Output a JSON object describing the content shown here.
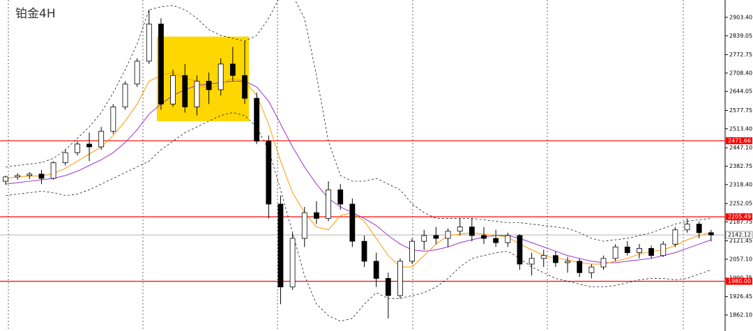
{
  "chart_data": {
    "type": "candlestick",
    "title": "铂金4H",
    "ylim": [
      1806,
      2964
    ],
    "yticks": [
      {
        "value": 2903.4,
        "label": "2903.40"
      },
      {
        "value": 2839.05,
        "label": "2839.05"
      },
      {
        "value": 2772.75,
        "label": "2772.75"
      },
      {
        "value": 2708.4,
        "label": "2708.40"
      },
      {
        "value": 2644.05,
        "label": "2644.05"
      },
      {
        "value": 2577.75,
        "label": "2577.75"
      },
      {
        "value": 2513.4,
        "label": "2513.40"
      },
      {
        "value": 2447.1,
        "label": "2447.10"
      },
      {
        "value": 2382.75,
        "label": "2382.75"
      },
      {
        "value": 2318.4,
        "label": "2318.40"
      },
      {
        "value": 2252.05,
        "label": "2252.05"
      },
      {
        "value": 2187.75,
        "label": "2187.75"
      },
      {
        "value": 2121.45,
        "label": "2121.45"
      },
      {
        "value": 2057.1,
        "label": "2057.10"
      },
      {
        "value": 1990.75,
        "label": "1990.75"
      },
      {
        "value": 1926.45,
        "label": "1926.45"
      },
      {
        "value": 1862.1,
        "label": "1862.10"
      }
    ],
    "candles": {
      "open": [
        2330,
        2345,
        2350,
        2355,
        2340,
        2395,
        2430,
        2460,
        2450,
        2505,
        2590,
        2670,
        2750,
        2880,
        2600,
        2700,
        2590,
        2680,
        2650,
        2740,
        2700,
        2620,
        2470,
        2250,
        1960,
        2130,
        2220,
        2200,
        2300,
        2250,
        2120,
        2050,
        1990,
        1930,
        2050,
        2120,
        2140,
        2130,
        2155,
        2170,
        2140,
        2130,
        2115,
        2140,
        2040,
        2060,
        2070,
        2045,
        2050,
        2010,
        2030,
        2060,
        2100,
        2080,
        2095,
        2070,
        2110,
        2160,
        2180,
        2150
      ],
      "high": [
        2350,
        2358,
        2362,
        2370,
        2400,
        2440,
        2470,
        2500,
        2520,
        2600,
        2680,
        2760,
        2930,
        2900,
        2720,
        2740,
        2700,
        2710,
        2760,
        2800,
        2820,
        2640,
        2490,
        2280,
        2150,
        2240,
        2260,
        2330,
        2320,
        2270,
        2140,
        2080,
        2010,
        2060,
        2130,
        2160,
        2170,
        2165,
        2200,
        2200,
        2170,
        2160,
        2150,
        2145,
        2080,
        2090,
        2085,
        2065,
        2060,
        2040,
        2070,
        2110,
        2120,
        2110,
        2105,
        2120,
        2170,
        2200,
        2190,
        2160
      ],
      "low": [
        2318,
        2335,
        2338,
        2320,
        2335,
        2385,
        2420,
        2400,
        2440,
        2495,
        2580,
        2660,
        2740,
        2580,
        2590,
        2570,
        2560,
        2600,
        2630,
        2680,
        2600,
        2460,
        2200,
        1900,
        1950,
        2100,
        2180,
        2190,
        2230,
        2100,
        2030,
        1960,
        1850,
        1920,
        2040,
        2090,
        2110,
        2100,
        2140,
        2120,
        2110,
        2100,
        2100,
        2020,
        2000,
        2030,
        2030,
        2010,
        1995,
        1990,
        2020,
        2050,
        2070,
        2060,
        2060,
        2065,
        2100,
        2150,
        2130,
        2120
      ],
      "close": [
        2345,
        2350,
        2355,
        2340,
        2395,
        2430,
        2460,
        2450,
        2505,
        2590,
        2670,
        2750,
        2880,
        2600,
        2700,
        2590,
        2680,
        2650,
        2740,
        2700,
        2620,
        2470,
        2250,
        1960,
        2130,
        2220,
        2200,
        2300,
        2250,
        2120,
        2050,
        1990,
        1930,
        2050,
        2120,
        2140,
        2130,
        2155,
        2170,
        2140,
        2130,
        2115,
        2140,
        2040,
        2060,
        2070,
        2045,
        2050,
        2010,
        2030,
        2060,
        2100,
        2080,
        2095,
        2070,
        2110,
        2160,
        2180,
        2150,
        2142
      ],
      "up_color": "#ffffff",
      "down_color": "#000000",
      "outline": "#000000"
    },
    "indicators": [
      {
        "color": "#000000",
        "dash": true,
        "values": [
          2380,
          2385,
          2390,
          2395,
          2410,
          2440,
          2480,
          2520,
          2570,
          2640,
          2720,
          2810,
          2930,
          2940,
          2945,
          2930,
          2900,
          2860,
          2840,
          2830,
          2820,
          2840,
          2900,
          2980,
          2980,
          2900,
          2700,
          2470,
          2350,
          2330,
          2330,
          2340,
          2320,
          2300,
          2250,
          2220,
          2200,
          2200,
          2200,
          2200,
          2195,
          2190,
          2185,
          2185,
          2180,
          2175,
          2170,
          2165,
          2150,
          2130,
          2120,
          2125,
          2130,
          2140,
          2150,
          2165,
          2180,
          2190,
          2195,
          2200
        ]
      },
      {
        "color": "#000000",
        "dash": true,
        "values": [
          2280,
          2285,
          2290,
          2295,
          2290,
          2280,
          2285,
          2300,
          2320,
          2340,
          2360,
          2380,
          2400,
          2440,
          2470,
          2500,
          2520,
          2540,
          2560,
          2570,
          2560,
          2520,
          2440,
          2300,
          2150,
          2000,
          1900,
          1860,
          1840,
          1850,
          1900,
          1940,
          1920,
          1920,
          1930,
          1940,
          1960,
          1990,
          2030,
          2060,
          2070,
          2080,
          2085,
          2060,
          2030,
          2010,
          1990,
          1980,
          1970,
          1960,
          1960,
          1965,
          1975,
          1985,
          1990,
          1990,
          1985,
          1990,
          2005,
          2020
        ]
      },
      {
        "color": "#9933cc",
        "dash": false,
        "values": [
          2320,
          2325,
          2330,
          2335,
          2340,
          2350,
          2365,
          2385,
          2405,
          2430,
          2465,
          2510,
          2565,
          2600,
          2630,
          2650,
          2665,
          2670,
          2675,
          2680,
          2680,
          2660,
          2610,
          2530,
          2450,
          2380,
          2320,
          2270,
          2240,
          2220,
          2200,
          2175,
          2140,
          2110,
          2090,
          2085,
          2090,
          2100,
          2115,
          2125,
          2135,
          2140,
          2140,
          2130,
          2115,
          2100,
          2085,
          2070,
          2060,
          2050,
          2045,
          2045,
          2050,
          2055,
          2060,
          2070,
          2080,
          2095,
          2110,
          2125
        ]
      },
      {
        "color": "#ff9900",
        "dash": false,
        "values": [
          2340,
          2345,
          2348,
          2348,
          2357,
          2375,
          2400,
          2425,
          2450,
          2490,
          2540,
          2600,
          2680,
          2700,
          2710,
          2690,
          2680,
          2650,
          2670,
          2690,
          2680,
          2630,
          2530,
          2400,
          2290,
          2220,
          2170,
          2160,
          2210,
          2220,
          2190,
          2130,
          2070,
          2030,
          2030,
          2070,
          2110,
          2140,
          2145,
          2150,
          2145,
          2140,
          2135,
          2110,
          2090,
          2070,
          2060,
          2055,
          2045,
          2040,
          2040,
          2050,
          2060,
          2075,
          2085,
          2090,
          2105,
          2125,
          2140,
          2150
        ]
      }
    ],
    "zone": {
      "start": 13,
      "end": 20,
      "low": 2540,
      "high": 2836,
      "color": "#ffd700"
    },
    "levels": {
      "values": [
        2471.66,
        2205.49,
        1980
      ],
      "value_labels": [
        "2471.66",
        "2205.49",
        "1980.00"
      ],
      "color": "#ff0000"
    },
    "last_price": {
      "value": 2142.12,
      "label": "2142.12",
      "color": "#999999"
    }
  }
}
